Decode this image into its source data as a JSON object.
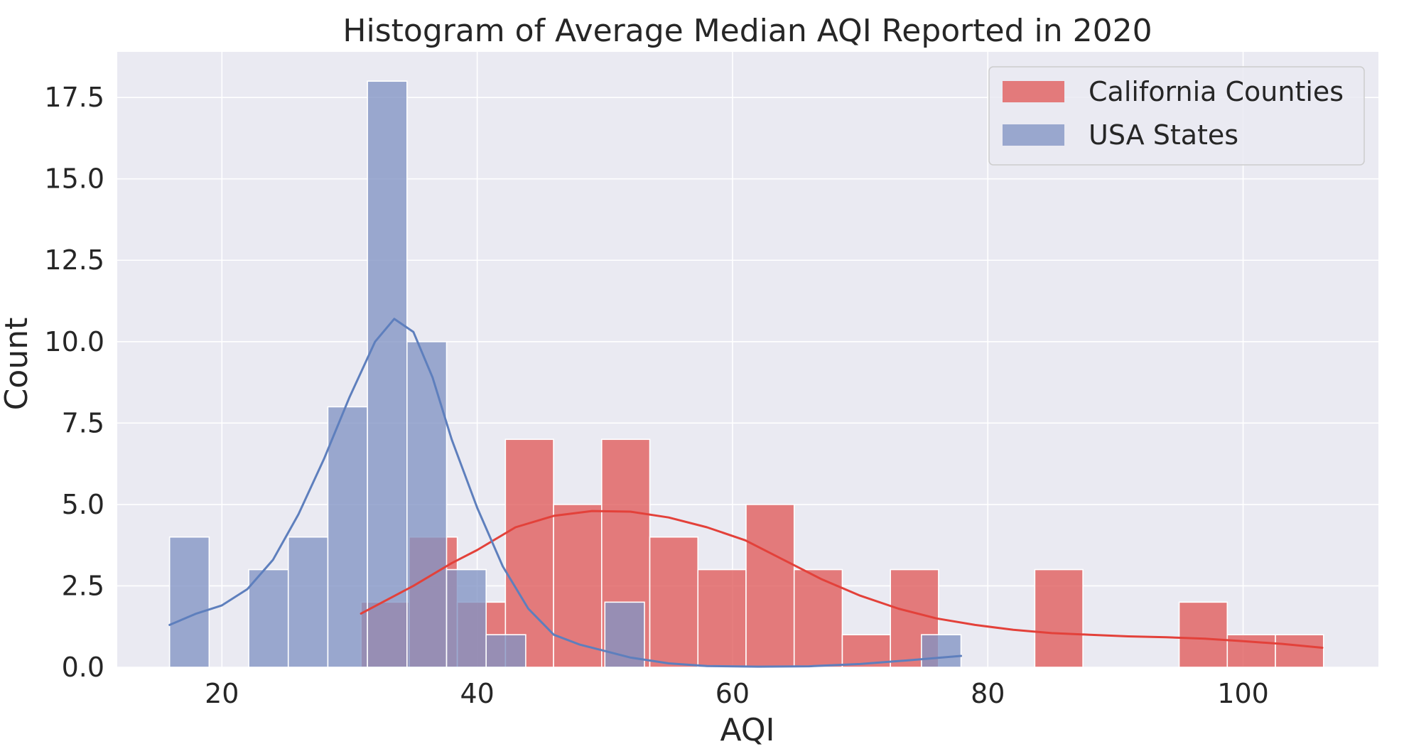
{
  "chart_data": {
    "type": "bar",
    "title": "Histogram of Average Median AQI Reported in 2020",
    "xlabel": "AQI",
    "ylabel": "Count",
    "xlim": [
      11.8,
      110.6
    ],
    "ylim": [
      0,
      18.9
    ],
    "x_ticks": [
      20,
      40,
      60,
      80,
      100
    ],
    "y_ticks": [
      0.0,
      2.5,
      5.0,
      7.5,
      10.0,
      12.5,
      15.0,
      17.5
    ],
    "x_tick_labels": [
      "20",
      "40",
      "60",
      "80",
      "100"
    ],
    "y_tick_labels": [
      "0.0",
      "2.5",
      "5.0",
      "7.5",
      "10.0",
      "12.5",
      "15.0",
      "17.5"
    ],
    "grid": true,
    "legend_position": "top-right",
    "series": [
      {
        "name": "California Counties",
        "color": "#e05a5a",
        "kde_color": "#e3413a",
        "bin_start": 30.9,
        "bin_width": 3.77,
        "values": [
          2,
          4,
          2,
          7,
          5,
          7,
          4,
          3,
          5,
          3,
          1,
          3,
          0,
          0,
          3,
          0,
          0,
          2,
          1,
          1
        ],
        "kde": [
          [
            30.9,
            1.65
          ],
          [
            35,
            2.5
          ],
          [
            38,
            3.2
          ],
          [
            40,
            3.6
          ],
          [
            43,
            4.3
          ],
          [
            46,
            4.65
          ],
          [
            49,
            4.8
          ],
          [
            52,
            4.78
          ],
          [
            55,
            4.6
          ],
          [
            58,
            4.3
          ],
          [
            61,
            3.9
          ],
          [
            64,
            3.3
          ],
          [
            67,
            2.7
          ],
          [
            70,
            2.2
          ],
          [
            73,
            1.8
          ],
          [
            76,
            1.5
          ],
          [
            79,
            1.3
          ],
          [
            82,
            1.15
          ],
          [
            85,
            1.05
          ],
          [
            88,
            1.0
          ],
          [
            91,
            0.95
          ],
          [
            94,
            0.92
          ],
          [
            97,
            0.88
          ],
          [
            100,
            0.8
          ],
          [
            103,
            0.72
          ],
          [
            106.2,
            0.6
          ]
        ]
      },
      {
        "name": "USA States",
        "color": "#8193c4",
        "kde_color": "#5e7fbd",
        "bin_start": 15.9,
        "bin_width": 3.1,
        "values": [
          4,
          0,
          3,
          4,
          8,
          18,
          10,
          3,
          1,
          0,
          0,
          2,
          0,
          0,
          0,
          0,
          0,
          0,
          0,
          1
        ],
        "kde": [
          [
            15.9,
            1.3
          ],
          [
            18,
            1.65
          ],
          [
            20,
            1.9
          ],
          [
            22,
            2.4
          ],
          [
            24,
            3.3
          ],
          [
            26,
            4.7
          ],
          [
            28,
            6.4
          ],
          [
            30,
            8.3
          ],
          [
            32,
            10.0
          ],
          [
            33.5,
            10.7
          ],
          [
            35,
            10.3
          ],
          [
            36.5,
            8.9
          ],
          [
            38,
            7.0
          ],
          [
            40,
            4.9
          ],
          [
            42,
            3.1
          ],
          [
            44,
            1.8
          ],
          [
            46,
            1.0
          ],
          [
            48,
            0.7
          ],
          [
            50,
            0.5
          ],
          [
            52,
            0.3
          ],
          [
            55,
            0.12
          ],
          [
            58,
            0.04
          ],
          [
            62,
            0.02
          ],
          [
            66,
            0.03
          ],
          [
            70,
            0.1
          ],
          [
            74,
            0.22
          ],
          [
            77.9,
            0.35
          ]
        ]
      }
    ]
  }
}
